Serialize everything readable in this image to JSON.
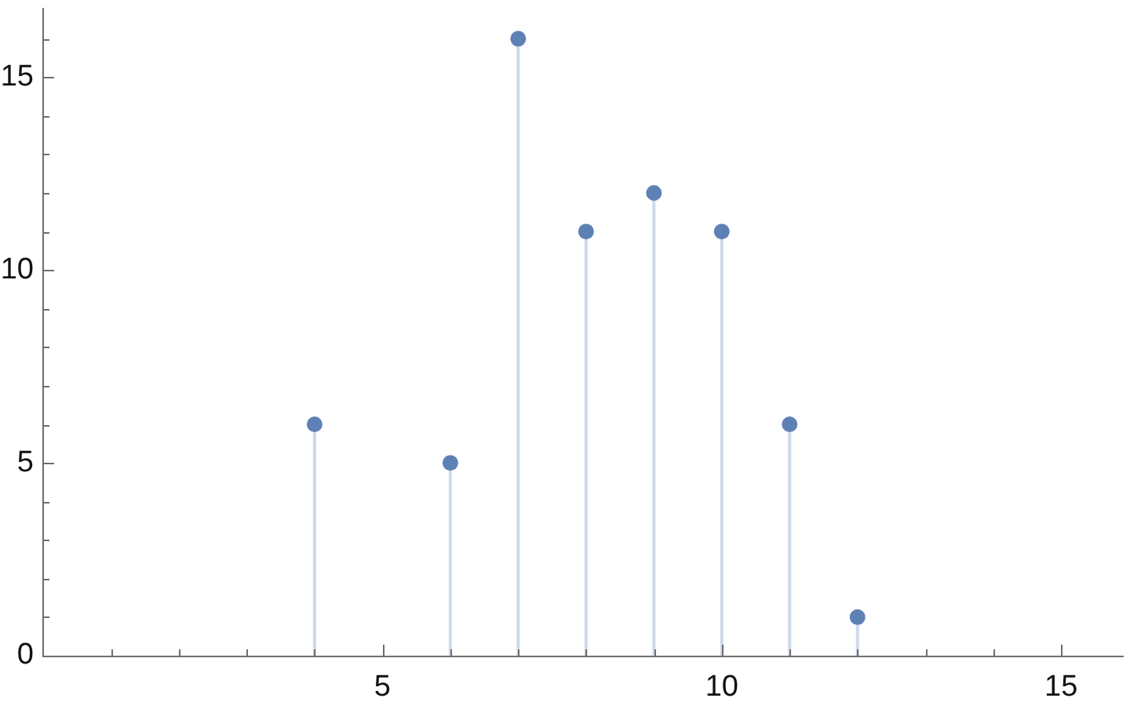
{
  "chart_data": {
    "type": "lollipop",
    "x": [
      4,
      6,
      7,
      8,
      9,
      10,
      11,
      12
    ],
    "series": [
      {
        "color": "#5e81b5",
        "values": [
          6,
          5,
          16,
          11,
          12,
          11,
          6,
          1
        ]
      }
    ],
    "xlim": [
      0,
      15.9
    ],
    "ylim": [
      0,
      16.8
    ],
    "xticks": [
      {
        "value": 1,
        "label": null
      },
      {
        "value": 2,
        "label": null
      },
      {
        "value": 3,
        "label": null
      },
      {
        "value": 4,
        "label": null
      },
      5,
      {
        "value": 6,
        "label": null
      },
      {
        "value": 7,
        "label": null
      },
      {
        "value": 8,
        "label": null
      },
      {
        "value": 9,
        "label": null
      },
      10,
      {
        "value": 11,
        "label": null
      },
      {
        "value": 12,
        "label": null
      },
      {
        "value": 13,
        "label": null
      },
      {
        "value": 14,
        "label": null
      },
      15
    ],
    "yticks": [
      0,
      {
        "value": 1,
        "label": null
      },
      {
        "value": 2,
        "label": null
      },
      {
        "value": 3,
        "label": null
      },
      {
        "value": 4,
        "label": null
      },
      5,
      {
        "value": 6,
        "label": null
      },
      {
        "value": 7,
        "label": null
      },
      {
        "value": 8,
        "label": null
      },
      {
        "value": 9,
        "label": null
      },
      10,
      {
        "value": 11,
        "label": null
      },
      {
        "value": 12,
        "label": null
      },
      {
        "value": 13,
        "label": null
      },
      {
        "value": 14,
        "label": null
      },
      15,
      {
        "value": 16,
        "label": null
      }
    ],
    "marker": "circle"
  }
}
